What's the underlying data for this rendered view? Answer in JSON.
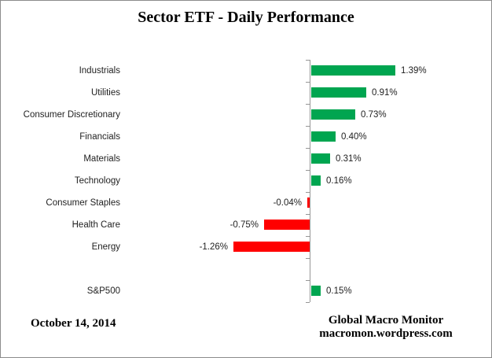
{
  "page": {
    "title": "Sector ETF - Daily Performance",
    "date": "October 14, 2014",
    "credit_line1": "Global Macro Monitor",
    "credit_line2": "macromon.wordpress.com"
  },
  "colors": {
    "positive_bar": "#00A550",
    "negative_bar": "#FF0000",
    "axis": "#969696",
    "label_text": "#1F1F1F",
    "border": "#8C8C8C"
  },
  "chart_data": {
    "type": "bar",
    "orientation": "horizontal",
    "title": "Sector ETF - Daily Performance",
    "xlabel": "",
    "ylabel": "",
    "unit": "percent",
    "value_axis_range": [
      -1.5,
      1.5
    ],
    "gridlines": false,
    "zero_baseline": true,
    "legend": "none",
    "categories": [
      "Industrials",
      "Utilities",
      "Consumer Discretionary",
      "Financials",
      "Materials",
      "Technology",
      "Consumer Staples",
      "Health Care",
      "Energy",
      "S&P500"
    ],
    "values": [
      1.39,
      0.91,
      0.73,
      0.4,
      0.31,
      0.16,
      -0.04,
      -0.75,
      -1.26,
      0.15
    ],
    "value_labels": [
      "1.39%",
      "0.91%",
      "0.73%",
      "0.40%",
      "0.31%",
      "0.16%",
      "-0.04%",
      "-0.75%",
      "-1.26%",
      "0.15%"
    ],
    "row_slots": [
      0,
      1,
      2,
      3,
      4,
      5,
      6,
      7,
      8,
      10
    ],
    "note": "blank spacer row between Energy and S&P500"
  }
}
